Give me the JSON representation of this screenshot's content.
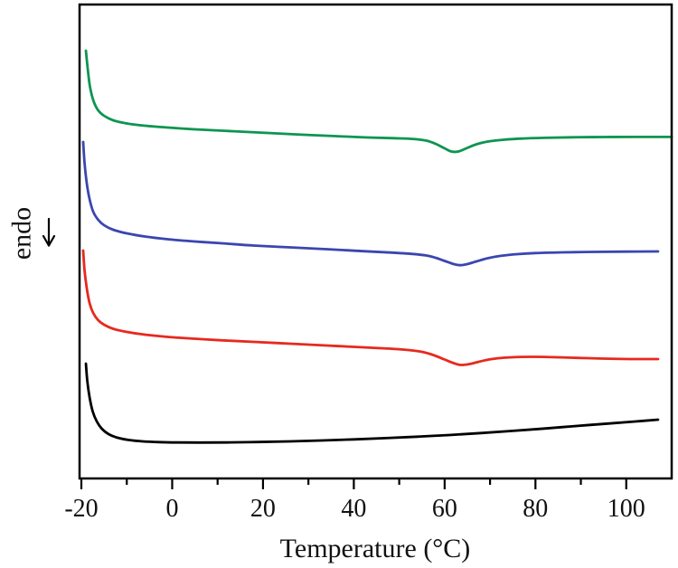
{
  "figure": {
    "background_color": "#ffffff",
    "frame_color": "#000000"
  },
  "chart_data": {
    "type": "line",
    "title": "",
    "xlabel": "Temperature (°C)",
    "ylabel": "endo",
    "ylabel_arrow": "↓",
    "grid": false,
    "legend": "none",
    "x_axis": {
      "xlim": [
        -20.4,
        110
      ],
      "ticks_major": [
        -20,
        0,
        20,
        40,
        60,
        80,
        100
      ],
      "ticks_minor": [
        -10,
        10,
        30,
        50,
        70,
        90
      ]
    },
    "y_axis": {
      "units": "arbitrary endothermic heat-flow units, no tick marks; point y-values are canvas pixels (larger = lower = more endothermic)",
      "ticks": []
    },
    "series": [
      {
        "name": "green-top",
        "color": "#0d9551",
        "points": [
          [
            -19,
            56
          ],
          [
            -18.6,
            76
          ],
          [
            -18.1,
            96
          ],
          [
            -17.3,
            112
          ],
          [
            -16.3,
            122
          ],
          [
            -15,
            128
          ],
          [
            -13,
            133
          ],
          [
            -10,
            136.5
          ],
          [
            -6,
            139
          ],
          [
            -1,
            141
          ],
          [
            5,
            143
          ],
          [
            11,
            144.5
          ],
          [
            17,
            146
          ],
          [
            23,
            147.5
          ],
          [
            29,
            149
          ],
          [
            36,
            150.5
          ],
          [
            43,
            152
          ],
          [
            49,
            152.8
          ],
          [
            53,
            153.6
          ],
          [
            56,
            155.5
          ],
          [
            58,
            159
          ],
          [
            60,
            164
          ],
          [
            61.5,
            167.5
          ],
          [
            63,
            167.5
          ],
          [
            65,
            163.5
          ],
          [
            67,
            159.5
          ],
          [
            69.5,
            156.5
          ],
          [
            73,
            154.5
          ],
          [
            77,
            153.2
          ],
          [
            82,
            152.4
          ],
          [
            88,
            151.8
          ],
          [
            95,
            151.5
          ],
          [
            102,
            151.4
          ],
          [
            110,
            151.4
          ]
        ]
      },
      {
        "name": "blue",
        "color": "#3a46b0",
        "points": [
          [
            -19.6,
            157
          ],
          [
            -19.3,
            180
          ],
          [
            -18.8,
            203
          ],
          [
            -18.2,
            220
          ],
          [
            -17.4,
            234
          ],
          [
            -16.3,
            243
          ],
          [
            -15,
            249
          ],
          [
            -13,
            254
          ],
          [
            -10,
            258
          ],
          [
            -6,
            261.5
          ],
          [
            -1,
            264.5
          ],
          [
            5,
            267
          ],
          [
            11,
            269
          ],
          [
            18,
            271.5
          ],
          [
            26,
            273.5
          ],
          [
            34,
            275.5
          ],
          [
            42,
            277.7
          ],
          [
            48,
            279.2
          ],
          [
            53,
            280.8
          ],
          [
            56,
            282.5
          ],
          [
            58,
            285
          ],
          [
            60,
            288.5
          ],
          [
            62,
            292
          ],
          [
            63.5,
            293.2
          ],
          [
            65,
            292
          ],
          [
            67,
            289
          ],
          [
            69.5,
            285.5
          ],
          [
            72.5,
            282.8
          ],
          [
            76,
            281
          ],
          [
            80,
            279.8
          ],
          [
            86,
            279
          ],
          [
            93,
            278.5
          ],
          [
            100,
            278.2
          ],
          [
            107,
            278
          ]
        ]
      },
      {
        "name": "red",
        "color": "#e7291d",
        "points": [
          [
            -19.6,
            277
          ],
          [
            -19.3,
            299
          ],
          [
            -18.8,
            319
          ],
          [
            -18.2,
            335
          ],
          [
            -17.4,
            346
          ],
          [
            -16.3,
            354
          ],
          [
            -15,
            359
          ],
          [
            -13,
            363.5
          ],
          [
            -10,
            367
          ],
          [
            -6,
            370
          ],
          [
            -1,
            372.5
          ],
          [
            5,
            374.5
          ],
          [
            11,
            376.3
          ],
          [
            18,
            378
          ],
          [
            26,
            380
          ],
          [
            34,
            382
          ],
          [
            42,
            384
          ],
          [
            48,
            385.5
          ],
          [
            52,
            387
          ],
          [
            55,
            389
          ],
          [
            57.5,
            392.5
          ],
          [
            60,
            397.5
          ],
          [
            62,
            401.5
          ],
          [
            63.5,
            403.5
          ],
          [
            65.5,
            402.5
          ],
          [
            67.5,
            400
          ],
          [
            70,
            397.3
          ],
          [
            73,
            395.5
          ],
          [
            77,
            394.6
          ],
          [
            82,
            394.6
          ],
          [
            88,
            395.5
          ],
          [
            95,
            396.5
          ],
          [
            101,
            397
          ],
          [
            107,
            397
          ]
        ]
      },
      {
        "name": "black-bottom",
        "color": "#000000",
        "points": [
          [
            -19,
            402
          ],
          [
            -18.7,
            421
          ],
          [
            -18.2,
            439
          ],
          [
            -17.5,
            455
          ],
          [
            -16.6,
            466
          ],
          [
            -15.5,
            474
          ],
          [
            -14,
            480
          ],
          [
            -12,
            484
          ],
          [
            -9.5,
            486.5
          ],
          [
            -6.5,
            488
          ],
          [
            -3,
            488.8
          ],
          [
            1,
            489.2
          ],
          [
            6,
            489.3
          ],
          [
            12,
            489.2
          ],
          [
            19,
            488.7
          ],
          [
            26,
            488
          ],
          [
            33,
            487
          ],
          [
            40,
            485.8
          ],
          [
            47,
            484.4
          ],
          [
            54,
            482.8
          ],
          [
            61,
            481
          ],
          [
            68,
            478.8
          ],
          [
            75,
            476.4
          ],
          [
            82,
            473.8
          ],
          [
            89,
            471
          ],
          [
            96,
            468.3
          ],
          [
            102,
            466
          ],
          [
            107,
            464
          ]
        ]
      }
    ]
  }
}
